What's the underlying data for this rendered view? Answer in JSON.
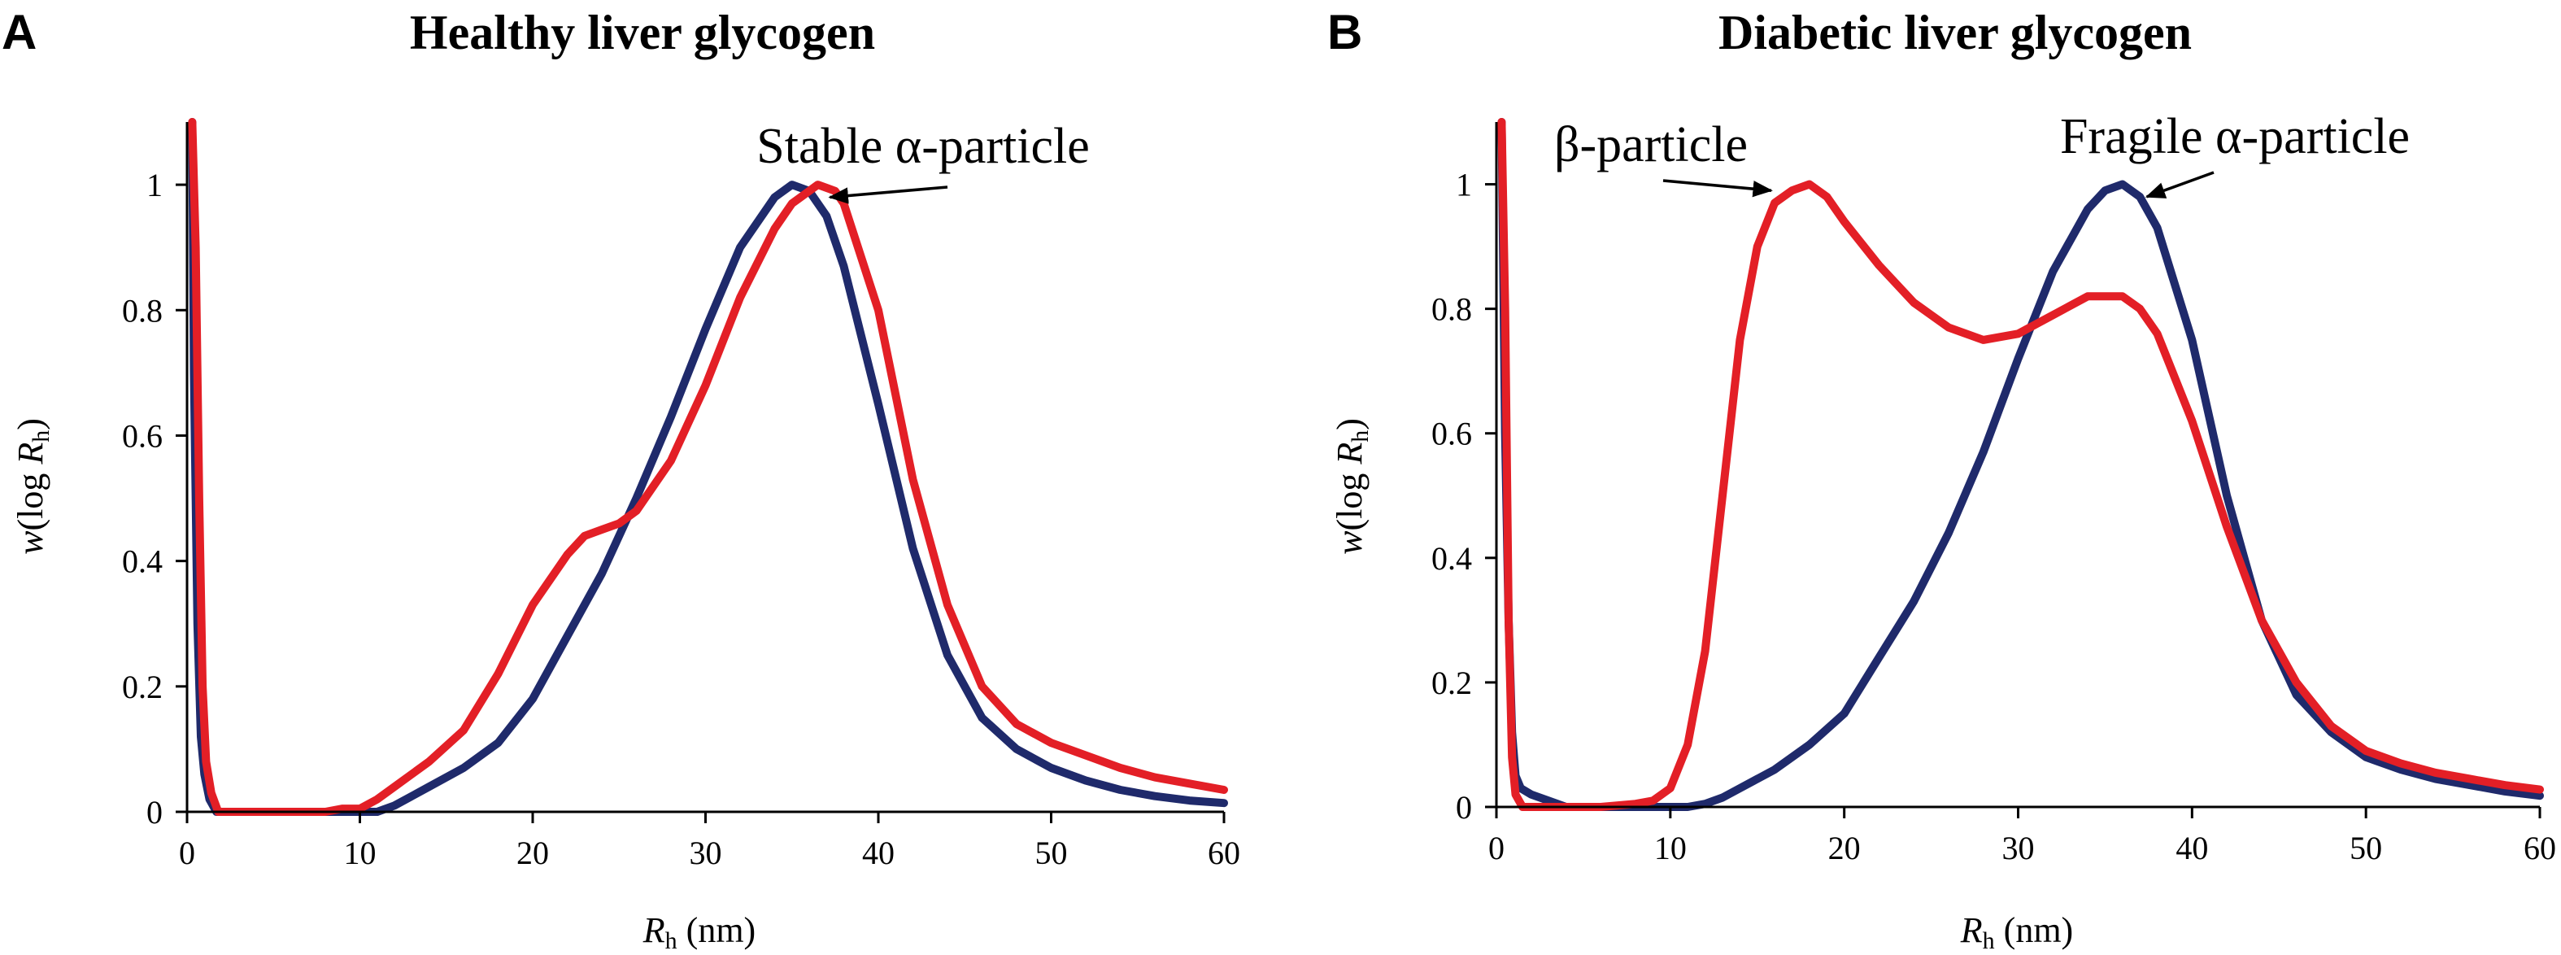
{
  "colors": {
    "healthy_red": "#e31f26",
    "diabetic_navy": "#1f2a6b",
    "axis": "#000000"
  },
  "chart_data": [
    {
      "type": "line",
      "panel": "A",
      "title": "Healthy liver glycogen",
      "xlabel": {
        "main": "R",
        "sub": "h",
        "rest": " (nm)"
      },
      "ylabel": {
        "pre": "w",
        "open": "(log ",
        "main": "R",
        "sub": "h",
        "close": ")"
      },
      "xlim": [
        0,
        60
      ],
      "ylim": [
        0,
        1.1
      ],
      "x_ticks": [
        0,
        10,
        20,
        30,
        40,
        50,
        60
      ],
      "x_tick_labels": [
        "0",
        "10",
        "20",
        "30",
        "40",
        "50",
        "60"
      ],
      "y_ticks": [
        0,
        0.2,
        0.4,
        0.6,
        0.8,
        1
      ],
      "y_tick_labels": [
        "0",
        "0.2",
        "0.4",
        "0.6",
        "0.8",
        "1"
      ],
      "annotations": [
        {
          "text": "Stable α-particle",
          "arrow_to": [
            37.2,
            0.98
          ]
        }
      ],
      "series": [
        {
          "name": "navy",
          "color": "#1f2a6b",
          "x": [
            0.3,
            0.4,
            0.6,
            0.8,
            1.0,
            1.3,
            1.7,
            11.0,
            12,
            14,
            16,
            18,
            20,
            22,
            24,
            26,
            28,
            30,
            32,
            34,
            35,
            36,
            37,
            38,
            40,
            42,
            44,
            46,
            48,
            50,
            52,
            54,
            56,
            58,
            60
          ],
          "y": [
            1.1,
            0.7,
            0.3,
            0.12,
            0.06,
            0.02,
            0,
            0,
            0.01,
            0.04,
            0.07,
            0.11,
            0.18,
            0.28,
            0.38,
            0.5,
            0.63,
            0.77,
            0.9,
            0.98,
            1.0,
            0.99,
            0.95,
            0.87,
            0.65,
            0.42,
            0.25,
            0.15,
            0.1,
            0.07,
            0.05,
            0.035,
            0.025,
            0.018,
            0.014
          ]
        },
        {
          "name": "red",
          "color": "#e31f26",
          "x": [
            0.3,
            0.5,
            0.7,
            0.9,
            1.1,
            1.4,
            1.8,
            8.0,
            9,
            10,
            11,
            12,
            14,
            16,
            18,
            20,
            22,
            23,
            24,
            25,
            26,
            28,
            30,
            32,
            34,
            35,
            36,
            36.5,
            37.5,
            38,
            40,
            42,
            44,
            46,
            48,
            50,
            52,
            54,
            56,
            58,
            60
          ],
          "y": [
            1.1,
            0.9,
            0.5,
            0.2,
            0.08,
            0.03,
            0,
            0,
            0.005,
            0.005,
            0.02,
            0.04,
            0.08,
            0.13,
            0.22,
            0.33,
            0.41,
            0.44,
            0.45,
            0.46,
            0.48,
            0.56,
            0.68,
            0.82,
            0.93,
            0.97,
            0.99,
            1.0,
            0.99,
            0.97,
            0.8,
            0.53,
            0.33,
            0.2,
            0.14,
            0.11,
            0.09,
            0.07,
            0.055,
            0.045,
            0.035
          ]
        }
      ]
    },
    {
      "type": "line",
      "panel": "B",
      "title": "Diabetic liver glycogen",
      "xlabel": {
        "main": "R",
        "sub": "h",
        "rest": " (nm)"
      },
      "ylabel": {
        "pre": "w",
        "open": "(log ",
        "main": "R",
        "sub": "h",
        "close": ")"
      },
      "xlim": [
        0,
        60
      ],
      "ylim": [
        0,
        1.1
      ],
      "x_ticks": [
        0,
        10,
        20,
        30,
        40,
        50,
        60
      ],
      "x_tick_labels": [
        "0",
        "10",
        "20",
        "30",
        "40",
        "50",
        "60"
      ],
      "y_ticks": [
        0,
        0.2,
        0.4,
        0.6,
        0.8,
        1
      ],
      "y_tick_labels": [
        "0",
        "0.2",
        "0.4",
        "0.6",
        "0.8",
        "1"
      ],
      "annotations": [
        {
          "text": "β-particle",
          "arrow_to": [
            15.8,
            0.99
          ]
        },
        {
          "text": "Fragile α-particle",
          "arrow_to": [
            37.4,
            0.98
          ]
        }
      ],
      "series": [
        {
          "name": "navy",
          "color": "#1f2a6b",
          "x": [
            0.3,
            0.5,
            0.7,
            0.9,
            1.1,
            1.4,
            2.0,
            3.0,
            4.0,
            11.0,
            12,
            13,
            14,
            16,
            18,
            20,
            22,
            24,
            26,
            28,
            30,
            32,
            34,
            35,
            36,
            37,
            38,
            40,
            42,
            44,
            46,
            48,
            50,
            52,
            54,
            56,
            58,
            60
          ],
          "y": [
            1.1,
            0.6,
            0.3,
            0.12,
            0.05,
            0.03,
            0.02,
            0.01,
            0,
            0,
            0.005,
            0.015,
            0.03,
            0.06,
            0.1,
            0.15,
            0.24,
            0.33,
            0.44,
            0.57,
            0.72,
            0.86,
            0.96,
            0.99,
            1.0,
            0.98,
            0.93,
            0.75,
            0.5,
            0.3,
            0.18,
            0.12,
            0.08,
            0.06,
            0.045,
            0.035,
            0.025,
            0.018
          ]
        },
        {
          "name": "red",
          "color": "#e31f26",
          "x": [
            0.3,
            0.5,
            0.7,
            0.9,
            1.1,
            1.5,
            6.0,
            8.0,
            9,
            10,
            11,
            12,
            13,
            14,
            15,
            16,
            17,
            18,
            19,
            20,
            22,
            24,
            26,
            28,
            30,
            32,
            34,
            35,
            36,
            37,
            38,
            40,
            42,
            44,
            46,
            48,
            50,
            52,
            54,
            56,
            58,
            60
          ],
          "y": [
            1.1,
            0.8,
            0.3,
            0.08,
            0.02,
            0,
            0,
            0.005,
            0.01,
            0.03,
            0.1,
            0.25,
            0.5,
            0.75,
            0.9,
            0.97,
            0.99,
            1.0,
            0.98,
            0.94,
            0.87,
            0.81,
            0.77,
            0.75,
            0.76,
            0.79,
            0.82,
            0.82,
            0.82,
            0.8,
            0.76,
            0.62,
            0.45,
            0.3,
            0.2,
            0.13,
            0.09,
            0.07,
            0.055,
            0.045,
            0.035,
            0.028
          ]
        }
      ]
    }
  ]
}
